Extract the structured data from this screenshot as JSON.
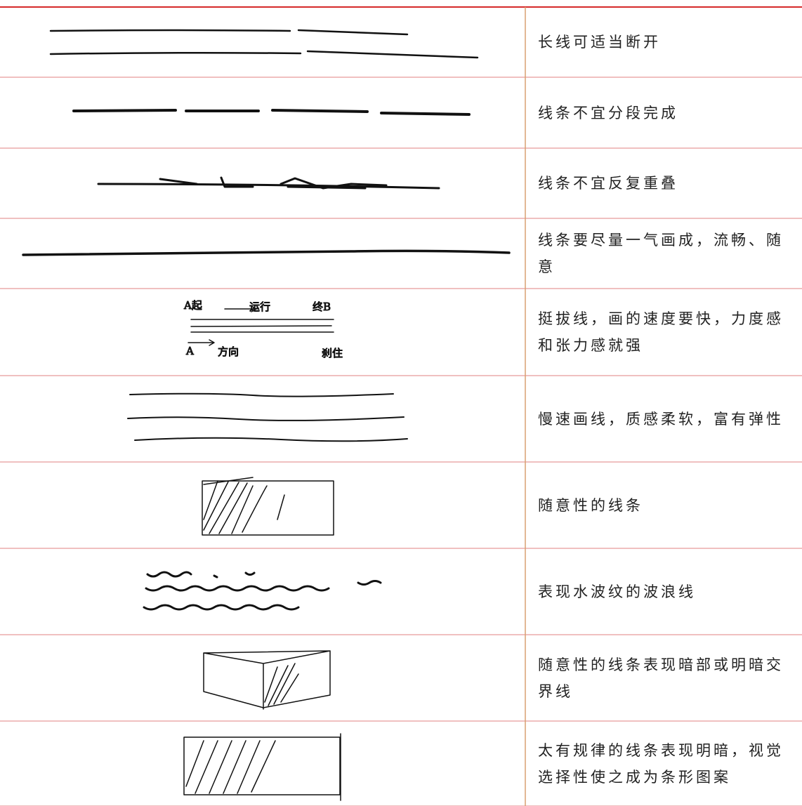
{
  "table": {
    "rows": [
      {
        "description": "长线可适当断开"
      },
      {
        "description": "线条不宜分段完成"
      },
      {
        "description": "线条不宜反复重叠"
      },
      {
        "description": "线条要尽量一气画成，流畅、随意"
      },
      {
        "description": "挺拔线，画的速度要快，力度感和张力感就强",
        "sketch_labels": [
          "A起",
          "运行",
          "终B",
          "A",
          "方向",
          "刹住"
        ]
      },
      {
        "description": "慢速画线，质感柔软，富有弹性"
      },
      {
        "description": "随意性的线条"
      },
      {
        "description": "表现水波纹的波浪线"
      },
      {
        "description": "随意性的线条表现暗部或明暗交界线"
      },
      {
        "description": "太有规律的线条表现明暗，视觉选择性使之成为条形图案"
      }
    ]
  }
}
